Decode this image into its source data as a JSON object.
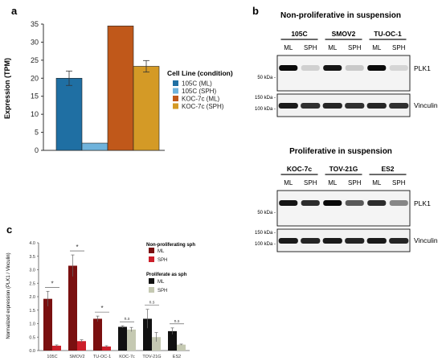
{
  "panel_labels": {
    "a": "a",
    "b": "b",
    "c": "c"
  },
  "chart_data": [
    {
      "type": "bar",
      "panel": "a",
      "ylabel": "Expression (TPM)",
      "ylim": [
        0,
        35
      ],
      "yticks": [
        0,
        5,
        10,
        15,
        20,
        25,
        30,
        35
      ],
      "legend_title": "Cell Line (condition)",
      "categories": [
        "105C (ML)",
        "105C (SPH)",
        "KOC-7c (ML)",
        "KOC-7c (SPH)"
      ],
      "values": [
        20,
        2,
        34.5,
        23.3
      ],
      "errors": [
        2.0,
        0,
        0,
        1.6
      ],
      "colors": [
        "#1f6fa3",
        "#6fb3dc",
        "#c0581a",
        "#d49a26"
      ],
      "legend_placement": "right"
    },
    {
      "type": "bar",
      "panel": "c",
      "ylabel": "Normalized expression (PLK1 / Vinculin)",
      "ylim": [
        0,
        4
      ],
      "yticks": [
        "0.0",
        "0.5",
        "1.0",
        "1.5",
        "2.0",
        "2.5",
        "3.0",
        "3.5",
        "4.0"
      ],
      "categories": [
        "105C",
        "SMOV2",
        "TU-OC-1",
        "KOC-7c",
        "TOV-21G",
        "ES2"
      ],
      "series": [
        {
          "name": "ML",
          "values": [
            1.92,
            3.15,
            1.18,
            0.88,
            1.18,
            0.72
          ],
          "errors": [
            0.28,
            0.4,
            0.1,
            0.04,
            0.35,
            0.12
          ]
        },
        {
          "name": "SPH",
          "values": [
            0.18,
            0.35,
            0.15,
            0.78,
            0.5,
            0.22
          ],
          "errors": [
            0.03,
            0.05,
            0.03,
            0.08,
            0.17,
            0.02
          ]
        }
      ],
      "group_kind": [
        "nonprolif",
        "nonprolif",
        "nonprolif",
        "prolif",
        "prolif",
        "prolif"
      ],
      "significance": [
        "*",
        "*",
        "*",
        "n.s",
        "n.s",
        "n.s"
      ],
      "colors": {
        "nonprolif_ml": "#7a1010",
        "nonprolif_sph": "#cc1f2a",
        "prolif_ml": "#111111",
        "prolif_sph": "#c5c9b2"
      },
      "legend": {
        "group1_title": "Non-proliferating sph",
        "group2_title": "Proliferate as sph",
        "ml": "ML",
        "sph": "SPH"
      }
    }
  ],
  "blots": {
    "top_title": "Non-proliferative in suspension",
    "top_cell_lines": [
      "105C",
      "SMOV2",
      "TU-OC-1"
    ],
    "bottom_title": "Proliferative in suspension",
    "bottom_cell_lines": [
      "KOC-7c",
      "TOV-21G",
      "ES2"
    ],
    "lane_labels": [
      "ML",
      "SPH",
      "ML",
      "SPH",
      "ML",
      "SPH"
    ],
    "proteins": {
      "plk1": "PLK1",
      "vinculin": "Vinculin"
    },
    "markers": {
      "k150": "150 kDa -",
      "k100": "100 kDa -",
      "k50": "50 kDa -"
    },
    "top_plk1_intensity": [
      1.0,
      0.12,
      0.95,
      0.15,
      1.0,
      0.1
    ],
    "top_vinc_intensity": [
      0.95,
      0.85,
      0.9,
      0.85,
      0.9,
      0.85
    ],
    "bottom_plk1_intensity": [
      0.95,
      0.85,
      1.0,
      0.65,
      0.85,
      0.45
    ],
    "bottom_vinc_intensity": [
      0.95,
      0.9,
      0.95,
      0.9,
      0.95,
      0.9
    ]
  }
}
